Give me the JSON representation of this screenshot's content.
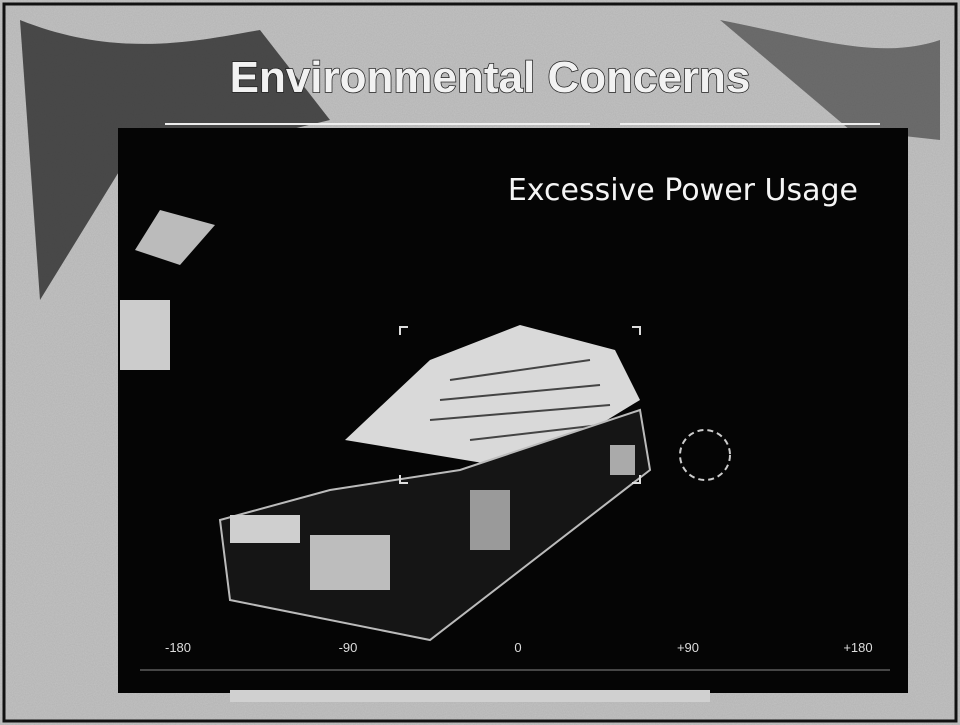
{
  "slide": {
    "title": "Environmental Concerns",
    "subtitle": "Excessive Power Usage",
    "scale_labels": [
      "-180",
      "-90",
      "0",
      "+90",
      "+180"
    ]
  }
}
